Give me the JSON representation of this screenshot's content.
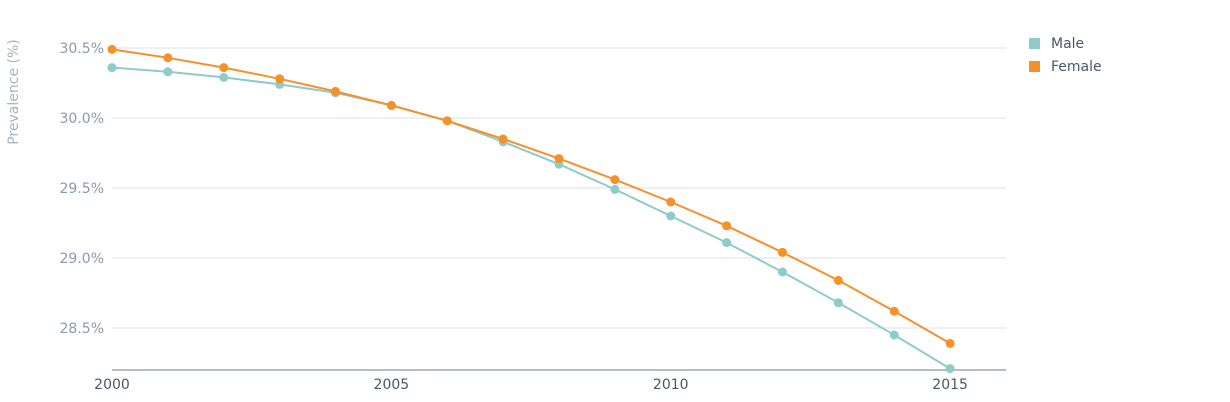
{
  "chart_data": {
    "type": "line",
    "title": "",
    "xlabel": "",
    "ylabel": "Prevalence (%)",
    "x": [
      2000,
      2001,
      2002,
      2003,
      2004,
      2005,
      2006,
      2007,
      2008,
      2009,
      2010,
      2011,
      2012,
      2013,
      2014,
      2015
    ],
    "xticks": [
      2000,
      2005,
      2010,
      2015
    ],
    "yticks": [
      28.5,
      29.0,
      29.5,
      30.0,
      30.5
    ],
    "ytick_labels": [
      "28.5%",
      "29.0%",
      "29.5%",
      "30.0%",
      "30.5%"
    ],
    "xlim": [
      2000,
      2016
    ],
    "ylim": [
      28.2,
      30.5
    ],
    "grid": true,
    "legend_position": "top-right",
    "series": [
      {
        "name": "Male",
        "color": "#8ecbc9",
        "values": [
          30.36,
          30.33,
          30.29,
          30.24,
          30.18,
          30.09,
          29.98,
          29.83,
          29.67,
          29.49,
          29.3,
          29.11,
          28.9,
          28.68,
          28.45,
          28.21
        ]
      },
      {
        "name": "Female",
        "color": "#f5902a",
        "values": [
          30.49,
          30.43,
          30.36,
          30.28,
          30.19,
          30.09,
          29.98,
          29.85,
          29.71,
          29.56,
          29.4,
          29.23,
          29.04,
          28.84,
          28.62,
          28.39
        ]
      }
    ]
  }
}
